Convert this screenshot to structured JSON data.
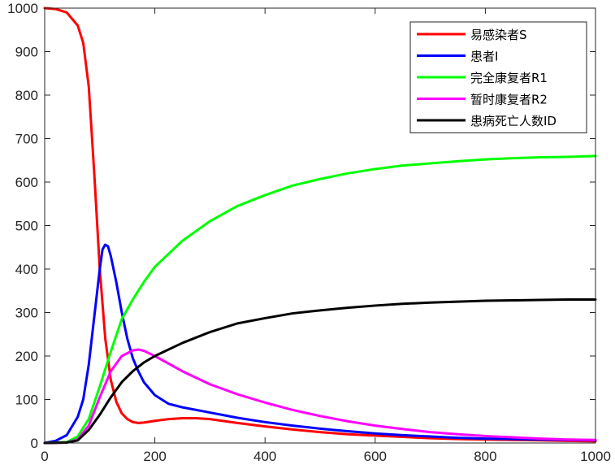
{
  "chart_data": {
    "type": "line",
    "title": "",
    "xlabel": "",
    "ylabel": "",
    "xlim": [
      0,
      1000
    ],
    "ylim": [
      0,
      1000
    ],
    "xticks": [
      0,
      200,
      400,
      600,
      800,
      1000
    ],
    "yticks": [
      0,
      100,
      200,
      300,
      400,
      500,
      600,
      700,
      800,
      900,
      1000
    ],
    "grid": false,
    "legend_position": "top-right",
    "series": [
      {
        "name": "易感染者S",
        "color": "#ff0000",
        "points": [
          [
            0,
            1000
          ],
          [
            20,
            998
          ],
          [
            40,
            990
          ],
          [
            60,
            960
          ],
          [
            70,
            920
          ],
          [
            80,
            820
          ],
          [
            90,
            620
          ],
          [
            100,
            400
          ],
          [
            110,
            240
          ],
          [
            120,
            145
          ],
          [
            130,
            95
          ],
          [
            140,
            68
          ],
          [
            150,
            55
          ],
          [
            160,
            48
          ],
          [
            170,
            46
          ],
          [
            180,
            47
          ],
          [
            200,
            51
          ],
          [
            225,
            55
          ],
          [
            250,
            57
          ],
          [
            275,
            57
          ],
          [
            300,
            55
          ],
          [
            350,
            46
          ],
          [
            400,
            38
          ],
          [
            450,
            31
          ],
          [
            500,
            25
          ],
          [
            550,
            20
          ],
          [
            600,
            17
          ],
          [
            650,
            14
          ],
          [
            700,
            11
          ],
          [
            750,
            9
          ],
          [
            800,
            8
          ],
          [
            850,
            7
          ],
          [
            900,
            6
          ],
          [
            950,
            5
          ],
          [
            1000,
            4
          ]
        ]
      },
      {
        "name": "患者I",
        "color": "#0000ff",
        "points": [
          [
            0,
            0
          ],
          [
            20,
            5
          ],
          [
            40,
            18
          ],
          [
            60,
            60
          ],
          [
            70,
            100
          ],
          [
            80,
            180
          ],
          [
            90,
            290
          ],
          [
            100,
            400
          ],
          [
            105,
            445
          ],
          [
            110,
            456
          ],
          [
            115,
            452
          ],
          [
            120,
            430
          ],
          [
            130,
            370
          ],
          [
            140,
            300
          ],
          [
            150,
            240
          ],
          [
            160,
            195
          ],
          [
            170,
            165
          ],
          [
            180,
            140
          ],
          [
            200,
            110
          ],
          [
            225,
            90
          ],
          [
            250,
            82
          ],
          [
            300,
            70
          ],
          [
            350,
            58
          ],
          [
            400,
            48
          ],
          [
            450,
            40
          ],
          [
            500,
            33
          ],
          [
            550,
            27
          ],
          [
            600,
            22
          ],
          [
            650,
            18
          ],
          [
            700,
            15
          ],
          [
            750,
            12
          ],
          [
            800,
            10
          ],
          [
            850,
            9
          ],
          [
            900,
            8
          ],
          [
            950,
            7
          ],
          [
            1000,
            6
          ]
        ]
      },
      {
        "name": "完全康复者R1",
        "color": "#00ff00",
        "points": [
          [
            0,
            0
          ],
          [
            40,
            2
          ],
          [
            60,
            15
          ],
          [
            80,
            55
          ],
          [
            100,
            130
          ],
          [
            120,
            210
          ],
          [
            140,
            285
          ],
          [
            160,
            330
          ],
          [
            180,
            370
          ],
          [
            200,
            405
          ],
          [
            250,
            465
          ],
          [
            300,
            510
          ],
          [
            350,
            545
          ],
          [
            400,
            570
          ],
          [
            450,
            592
          ],
          [
            500,
            607
          ],
          [
            550,
            620
          ],
          [
            600,
            630
          ],
          [
            650,
            638
          ],
          [
            700,
            643
          ],
          [
            750,
            648
          ],
          [
            800,
            652
          ],
          [
            850,
            655
          ],
          [
            900,
            657
          ],
          [
            950,
            658
          ],
          [
            1000,
            660
          ]
        ]
      },
      {
        "name": "暂时康复者R2",
        "color": "#ff00ff",
        "points": [
          [
            0,
            0
          ],
          [
            40,
            1
          ],
          [
            60,
            8
          ],
          [
            80,
            40
          ],
          [
            100,
            105
          ],
          [
            120,
            165
          ],
          [
            140,
            200
          ],
          [
            160,
            213
          ],
          [
            170,
            215
          ],
          [
            180,
            212
          ],
          [
            200,
            200
          ],
          [
            250,
            165
          ],
          [
            300,
            135
          ],
          [
            350,
            112
          ],
          [
            400,
            93
          ],
          [
            450,
            76
          ],
          [
            500,
            62
          ],
          [
            550,
            50
          ],
          [
            600,
            40
          ],
          [
            650,
            32
          ],
          [
            700,
            25
          ],
          [
            750,
            20
          ],
          [
            800,
            16
          ],
          [
            850,
            13
          ],
          [
            900,
            10
          ],
          [
            950,
            8
          ],
          [
            1000,
            7
          ]
        ]
      },
      {
        "name": "患病死亡人数ID",
        "color": "#000000",
        "points": [
          [
            0,
            0
          ],
          [
            40,
            1
          ],
          [
            60,
            6
          ],
          [
            80,
            30
          ],
          [
            100,
            65
          ],
          [
            120,
            105
          ],
          [
            140,
            140
          ],
          [
            160,
            165
          ],
          [
            180,
            185
          ],
          [
            200,
            200
          ],
          [
            250,
            230
          ],
          [
            300,
            255
          ],
          [
            350,
            275
          ],
          [
            400,
            287
          ],
          [
            450,
            298
          ],
          [
            500,
            305
          ],
          [
            550,
            311
          ],
          [
            600,
            316
          ],
          [
            650,
            320
          ],
          [
            700,
            323
          ],
          [
            750,
            325
          ],
          [
            800,
            327
          ],
          [
            850,
            328
          ],
          [
            900,
            329
          ],
          [
            950,
            330
          ],
          [
            1000,
            330
          ]
        ]
      }
    ]
  }
}
